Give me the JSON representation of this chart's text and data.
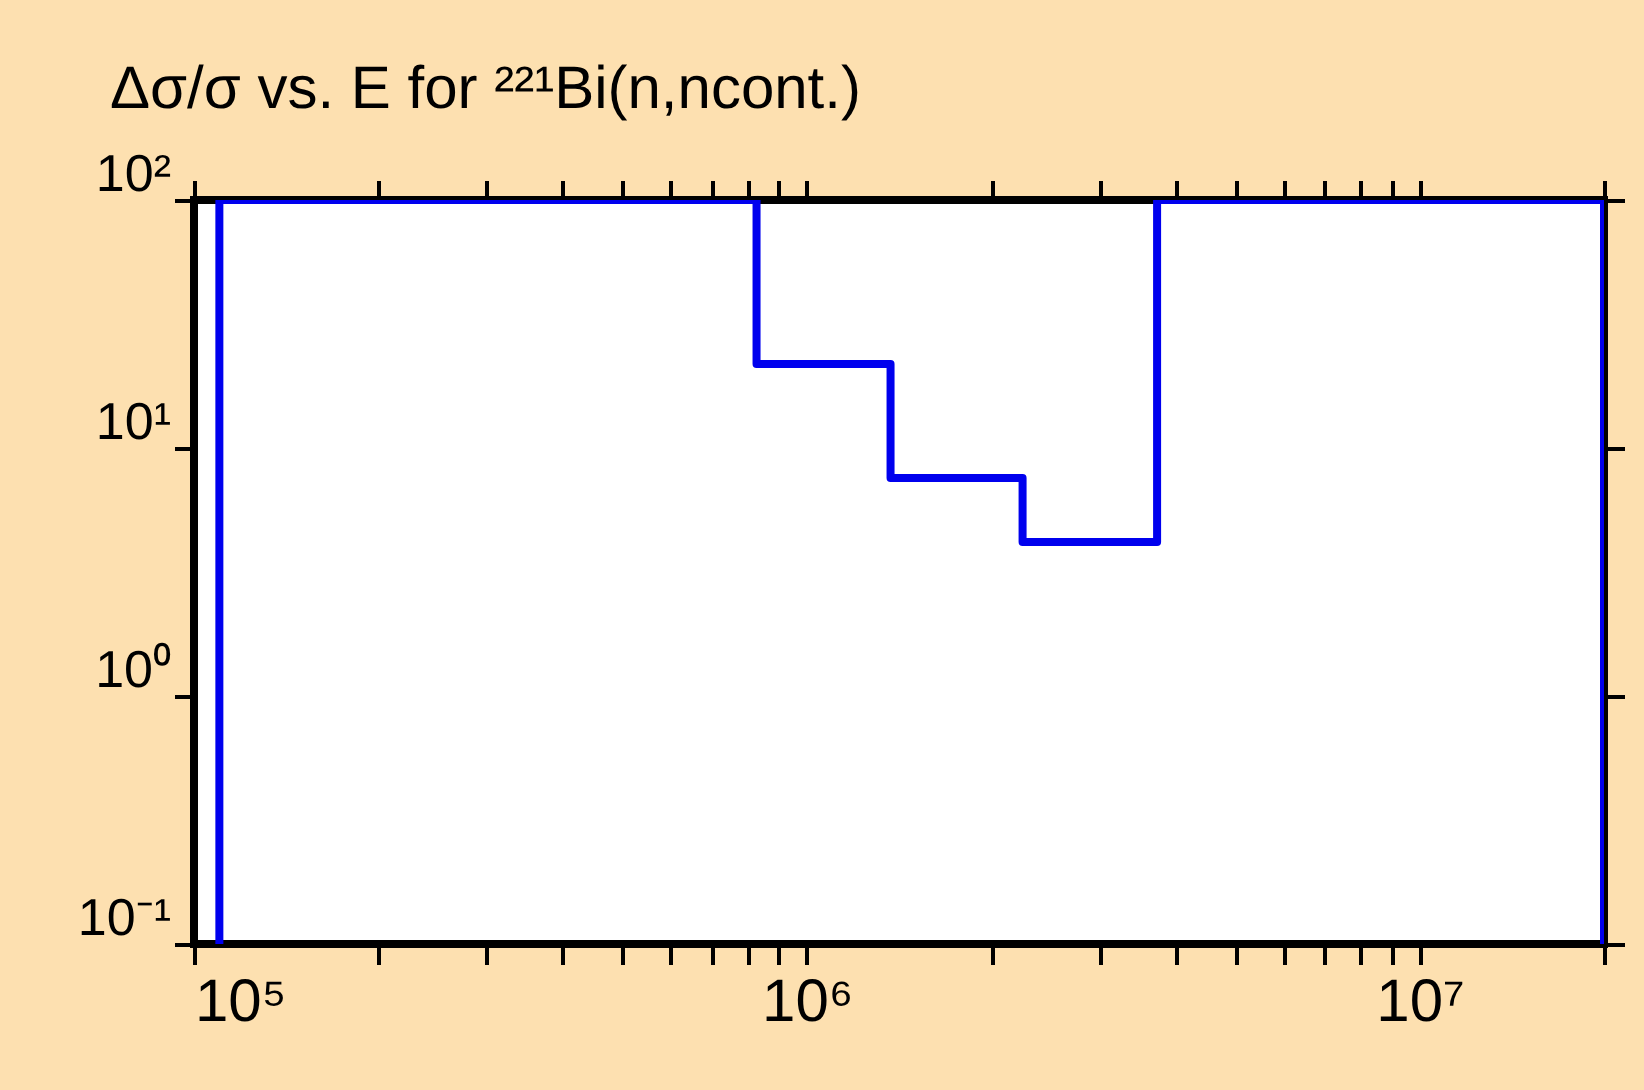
{
  "chart_data": {
    "type": "step",
    "title": "Δσ/σ vs. E for ²²¹Bi(n,ncont.)",
    "x": [
      110000,
      110000,
      828000,
      1370000,
      2250000,
      3730000,
      20000000,
      20000000
    ],
    "series": [
      {
        "color": "#0000ee",
        "values": [
          0.1,
          100,
          21.8,
          7.57,
          4.18,
          100,
          100,
          0.1
        ]
      }
    ],
    "log": "xy",
    "xlim": [
      100000,
      20000000
    ],
    "xticks": [
      {
        "value": 100000,
        "label": "10⁵"
      },
      {
        "value": 200000,
        "label": null
      },
      {
        "value": 300000,
        "label": null
      },
      {
        "value": 400000,
        "label": null
      },
      {
        "value": 500000,
        "label": null
      },
      {
        "value": 600000,
        "label": null
      },
      {
        "value": 700000,
        "label": null
      },
      {
        "value": 800000,
        "label": null
      },
      {
        "value": 900000,
        "label": null
      },
      {
        "value": 1000000,
        "label": "10⁶"
      },
      {
        "value": 2000000,
        "label": null
      },
      {
        "value": 3000000,
        "label": null
      },
      {
        "value": 4000000,
        "label": null
      },
      {
        "value": 5000000,
        "label": null
      },
      {
        "value": 6000000,
        "label": null
      },
      {
        "value": 7000000,
        "label": null
      },
      {
        "value": 8000000,
        "label": null
      },
      {
        "value": 9000000,
        "label": null
      },
      {
        "value": 10000000,
        "label": "10⁷"
      },
      {
        "value": 20000000,
        "label": null
      }
    ],
    "ylim": [
      0.1,
      100
    ],
    "yticks": [
      {
        "value": 0.1,
        "label": "10⁻¹"
      },
      {
        "value": 1,
        "label": "10⁰"
      },
      {
        "value": 10,
        "label": "10¹"
      },
      {
        "value": 100,
        "label": "10²"
      }
    ]
  }
}
